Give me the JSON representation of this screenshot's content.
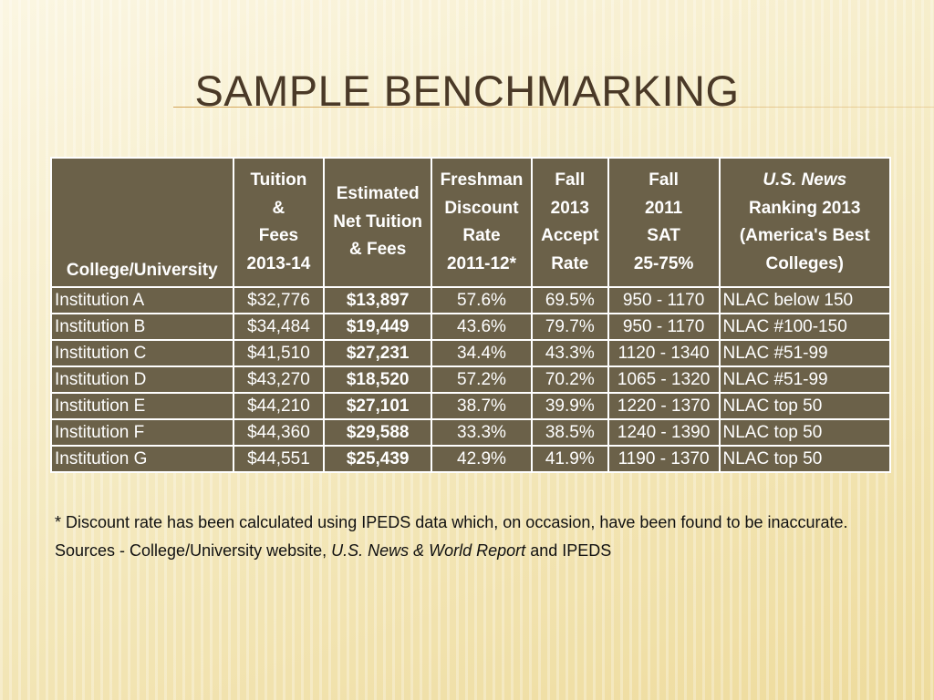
{
  "slide": {
    "title": "SAMPLE BENCHMARKING"
  },
  "table": {
    "headers": [
      {
        "lines": [
          "College/University"
        ]
      },
      {
        "lines": [
          "Tuition",
          "&",
          "Fees",
          "2013-14"
        ]
      },
      {
        "lines": [
          "Estimated",
          "Net Tuition",
          "& Fees"
        ]
      },
      {
        "lines": [
          "Freshman",
          "Discount",
          "Rate",
          "2011-12*"
        ]
      },
      {
        "lines": [
          "Fall",
          "2013",
          "Accept",
          "Rate"
        ]
      },
      {
        "lines": [
          "Fall",
          "2011",
          "SAT",
          "25-75%"
        ]
      },
      {
        "lines": [
          "U.S. News",
          "Ranking 2013",
          "(America's Best",
          "Colleges)"
        ]
      }
    ],
    "rows": [
      [
        "Institution A",
        "$32,776",
        "$13,897",
        "57.6%",
        "69.5%",
        "950 - 1170",
        "NLAC below 150"
      ],
      [
        "Institution B",
        "$34,484",
        "$19,449",
        "43.6%",
        "79.7%",
        "950 - 1170",
        "NLAC #100-150"
      ],
      [
        "Institution C",
        "$41,510",
        "$27,231",
        "34.4%",
        "43.3%",
        "1120 - 1340",
        "NLAC #51-99"
      ],
      [
        "Institution D",
        "$43,270",
        "$18,520",
        "57.2%",
        "70.2%",
        "1065 - 1320",
        "NLAC #51-99"
      ],
      [
        "Institution E",
        "$44,210",
        "$27,101",
        "38.7%",
        "39.9%",
        "1220 - 1370",
        "NLAC top 50"
      ],
      [
        "Institution F",
        "$44,360",
        "$29,588",
        "33.3%",
        "38.5%",
        "1240 - 1390",
        "NLAC top 50"
      ],
      [
        "Institution G",
        "$44,551",
        "$25,439",
        "42.9%",
        "41.9%",
        "1190 - 1370",
        "NLAC top 50"
      ]
    ]
  },
  "notes": {
    "footnote": "* Discount rate has been calculated using IPEDS data which, on occasion, have been found to be inaccurate.",
    "sources_prefix": "Sources - College/University website, ",
    "sources_publication": "U.S. News & World Report",
    "sources_suffix": " and IPEDS"
  },
  "colors": {
    "table_fill": "#6b6149",
    "title_text": "#4a3927",
    "background": "#f6ecc6"
  }
}
